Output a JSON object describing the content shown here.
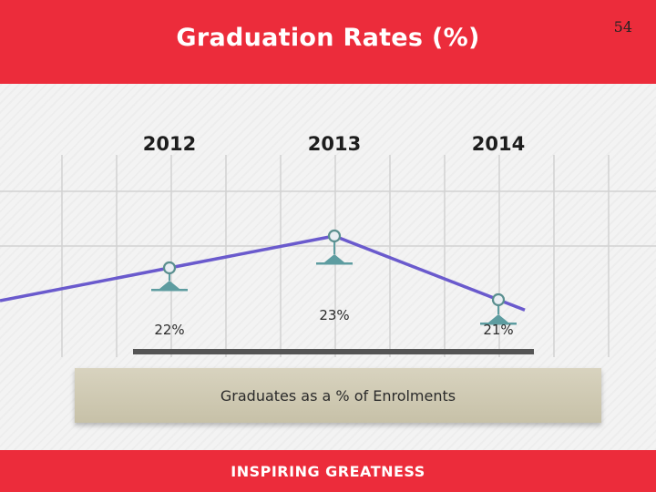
{
  "slide": {
    "title": "Graduation Rates (%)",
    "page_number": "54",
    "caption": "Graduates as a % of Enrolments",
    "footer": "INSPIRING GREATNESS"
  },
  "colors": {
    "header_red": "#ec2c3b",
    "line": "#6a5acd",
    "marker_fill": "#e9eef3",
    "marker_stroke": "#5a8f8f",
    "support": "#5d9ca0",
    "baseline": "#555555",
    "caption_bg": "#d0cab3"
  },
  "chart_data": {
    "type": "line",
    "title": "Graduation Rates (%)",
    "categories": [
      "2012",
      "2013",
      "2014"
    ],
    "series": [
      {
        "values": [
          22,
          23,
          21
        ]
      }
    ],
    "data_labels": [
      "22%",
      "23%",
      "21%"
    ],
    "ylim": [
      20,
      24
    ],
    "grid": true
  }
}
